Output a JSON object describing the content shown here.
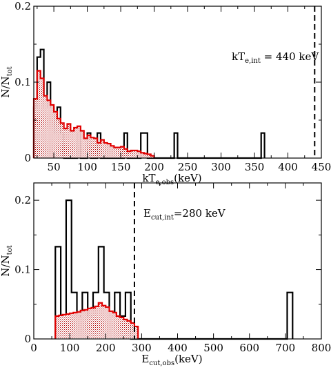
{
  "chart_data": [
    {
      "type": "histogram",
      "xlim": [
        20,
        450
      ],
      "ylim": [
        0,
        0.2
      ],
      "xticks": [
        50,
        100,
        150,
        200,
        250,
        300,
        350,
        400,
        450
      ],
      "yticks": [
        0,
        0.1,
        0.2
      ],
      "xtick_labels": [
        "50",
        "100",
        "150",
        "200",
        "250",
        "300",
        "350",
        "400",
        "450"
      ],
      "ytick_labels": [
        "0",
        "0.1",
        "0.2"
      ],
      "xlabel": {
        "main": "kT",
        "sub": "e,obs",
        "suffix": "(keV)"
      },
      "ylabel": {
        "main": "N/N",
        "sub": "tot"
      },
      "annotation": {
        "main": "kT",
        "sub": "e,int",
        "suffix": " = 440 keV"
      },
      "reference_line": {
        "x": 440
      },
      "series": [
        {
          "color": "#000000",
          "edges": [
            20,
            25,
            30,
            35,
            40,
            45,
            50,
            55,
            60,
            65,
            70,
            75,
            80,
            85,
            90,
            95,
            100,
            105,
            110,
            115,
            120,
            125,
            130,
            135,
            140,
            145,
            150,
            155,
            160,
            165,
            170,
            175,
            180,
            185,
            190,
            195,
            200,
            205,
            210,
            215,
            220,
            225,
            230,
            235,
            240,
            245,
            250,
            255,
            260,
            265,
            270,
            275,
            280,
            285,
            290,
            295,
            300,
            305,
            310,
            315,
            320,
            325,
            330,
            335,
            340,
            345,
            350,
            355,
            360,
            365
          ],
          "values": [
            0.067,
            0.133,
            0.143,
            0.067,
            0.1,
            0.067,
            0.033,
            0.067,
            0.033,
            0.0,
            0.0,
            0.0,
            0.0,
            0.033,
            0.0,
            0.0,
            0.033,
            0.0,
            0.0,
            0.033,
            0.0,
            0.0,
            0.0,
            0.0,
            0.0,
            0.0,
            0.0,
            0.033,
            0.0,
            0.0,
            0.0,
            0.0,
            0.033,
            0.033,
            0.0,
            0.0,
            0.0,
            0.0,
            0.0,
            0.0,
            0.0,
            0.0,
            0.033,
            0.0,
            0.0,
            0.0,
            0.0,
            0.0,
            0.0,
            0.0,
            0.0,
            0.0,
            0.0,
            0.0,
            0.0,
            0.0,
            0.0,
            0.0,
            0.0,
            0.0,
            0.0,
            0.0,
            0.0,
            0.0,
            0.0,
            0.0,
            0.0,
            0.0,
            0.033
          ]
        },
        {
          "color": "#e00000",
          "hatched": true,
          "edges": [
            20,
            25,
            30,
            35,
            40,
            45,
            50,
            55,
            60,
            65,
            70,
            75,
            80,
            85,
            90,
            95,
            100,
            105,
            110,
            115,
            120,
            125,
            130,
            135,
            140,
            145,
            150,
            155,
            160,
            165,
            170,
            175,
            180,
            185,
            190,
            195,
            200
          ],
          "values": [
            0.078,
            0.115,
            0.105,
            0.082,
            0.076,
            0.07,
            0.061,
            0.052,
            0.046,
            0.039,
            0.045,
            0.036,
            0.04,
            0.042,
            0.036,
            0.026,
            0.03,
            0.027,
            0.026,
            0.02,
            0.024,
            0.02,
            0.019,
            0.016,
            0.014,
            0.014,
            0.015,
            0.012,
            0.009,
            0.01,
            0.01,
            0.009,
            0.007,
            0.006,
            0.005,
            0.003
          ]
        }
      ]
    },
    {
      "type": "histogram",
      "xlim": [
        0,
        800
      ],
      "ylim": [
        0,
        0.225
      ],
      "xticks": [
        0,
        100,
        200,
        300,
        400,
        500,
        600,
        700,
        800
      ],
      "yticks": [
        0,
        0.1,
        0.2
      ],
      "xtick_labels": [
        "0",
        "100",
        "200",
        "300",
        "400",
        "500",
        "600",
        "700",
        "800"
      ],
      "ytick_labels": [
        "0",
        "0.1",
        "0.2"
      ],
      "xlabel": {
        "main": "E",
        "sub": "cut,obs",
        "suffix": "(keV)"
      },
      "ylabel": {
        "main": "N/N",
        "sub": "tot"
      },
      "annotation": {
        "main": "E",
        "sub": "cut,int",
        "suffix": "=280 keV"
      },
      "reference_line": {
        "x": 280
      },
      "series": [
        {
          "color": "#000000",
          "edges": [
            60,
            75,
            90,
            105,
            120,
            135,
            150,
            165,
            180,
            195,
            210,
            225,
            240,
            255,
            270,
            285,
            300,
            315,
            330,
            345,
            360,
            375,
            390,
            405,
            420,
            435,
            450,
            465,
            480,
            495,
            510,
            525,
            540,
            555,
            570,
            585,
            600,
            615,
            630,
            645,
            660,
            675,
            690,
            705,
            720
          ],
          "values": [
            0.133,
            0.033,
            0.2,
            0.067,
            0.033,
            0.067,
            0.033,
            0.067,
            0.133,
            0.067,
            0.033,
            0.067,
            0.033,
            0.067,
            0.0,
            0.0,
            0.0,
            0.0,
            0.0,
            0.0,
            0.0,
            0.0,
            0.0,
            0.0,
            0.0,
            0.0,
            0.0,
            0.0,
            0.0,
            0.0,
            0.0,
            0.0,
            0.0,
            0.0,
            0.0,
            0.0,
            0.0,
            0.0,
            0.0,
            0.0,
            0.0,
            0.0,
            0.0,
            0.067
          ]
        },
        {
          "color": "#e00000",
          "hatched": true,
          "edges": [
            60,
            70,
            80,
            90,
            100,
            110,
            120,
            130,
            140,
            150,
            160,
            170,
            180,
            190,
            200,
            210,
            220,
            230,
            240,
            250,
            260,
            270,
            280,
            290
          ],
          "values": [
            0.033,
            0.034,
            0.035,
            0.036,
            0.037,
            0.038,
            0.039,
            0.041,
            0.042,
            0.044,
            0.045,
            0.047,
            0.052,
            0.048,
            0.046,
            0.04,
            0.038,
            0.033,
            0.031,
            0.028,
            0.026,
            0.023,
            0.018
          ]
        }
      ]
    }
  ]
}
